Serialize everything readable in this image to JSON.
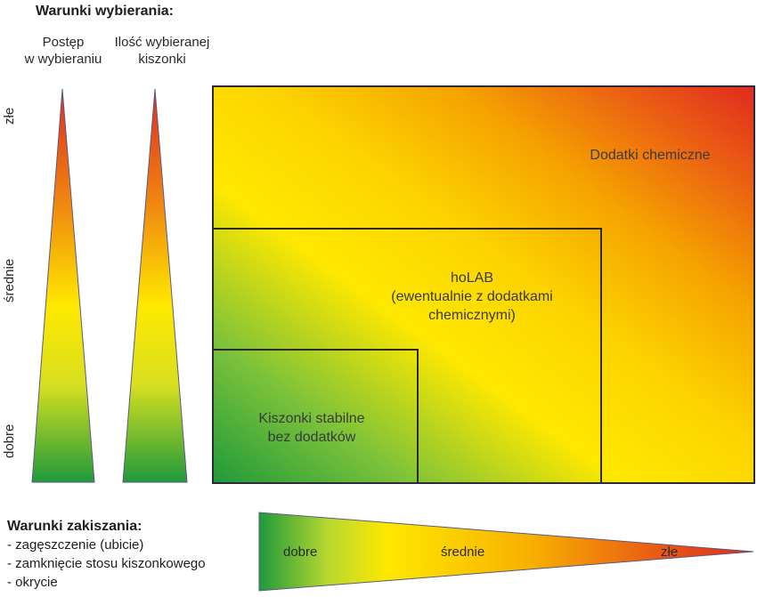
{
  "header": {
    "title": "Warunki wybierania:",
    "col1": [
      "Postęp",
      "w wybieraniu"
    ],
    "col2": [
      "Ilość wybieranej",
      "kiszonki"
    ]
  },
  "vertical_scale": {
    "top": "złe",
    "middle": "średnie",
    "bottom": "dobre"
  },
  "regions": {
    "outer": "Dodatki chemiczne",
    "middle": [
      "hoLAB",
      "(ewentualnie z dodatkami",
      "chemicznymi)"
    ],
    "inner": [
      "Kiszonki stabilne",
      "bez dodatków"
    ]
  },
  "footer": {
    "title": "Warunki zakiszania:",
    "items": [
      "- zagęszczenie (ubicie)",
      "- zamknięcie stosu kiszonkowego",
      "- okrycie"
    ]
  },
  "horizontal_scale": {
    "left": "dobre",
    "middle": "średnie",
    "right": "złe"
  },
  "colors": {
    "green": "#1f9a3a",
    "yellow": "#ffe800",
    "orange": "#f5a300",
    "red": "#e02a1e",
    "border": "#2e2a3a"
  }
}
